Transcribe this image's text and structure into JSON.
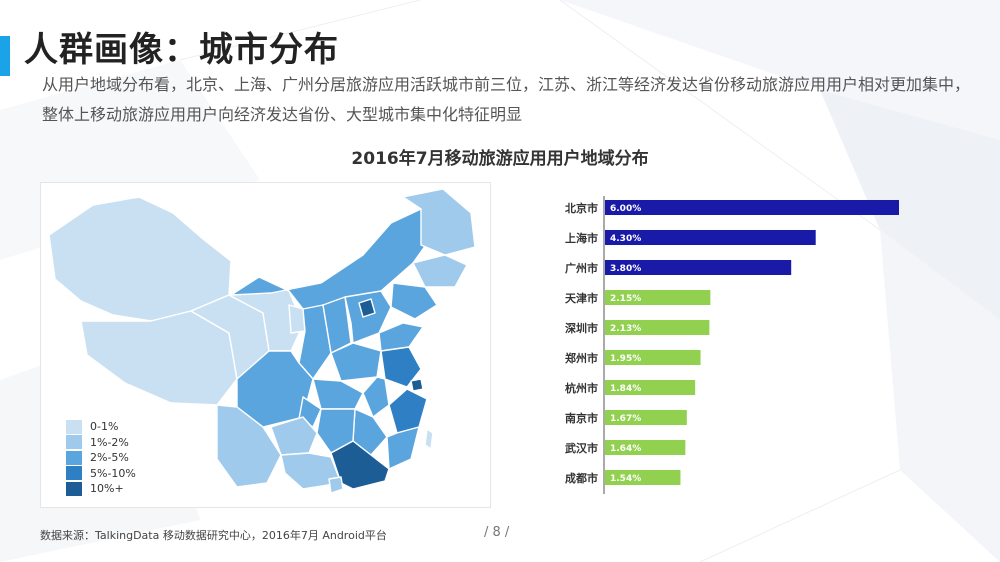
{
  "header": {
    "title": "人群画像：城市分布",
    "subtitle": "从用户地域分布看，北京、上海、广州分居旅游应用活跃城市前三位，江苏、浙江等经济发达省份移动旅游应用用户相对更加集中，整体上移动旅游应用用户向经济发达省份、大型城市集中化特征明显"
  },
  "colors": {
    "accent": "#1aa3e8",
    "bar_top": "#1a1aa8",
    "bar_rest": "#92d050",
    "map_levels": [
      "#c9e0f3",
      "#9fcaec",
      "#5aa5de",
      "#2f7fc4",
      "#1c5d95"
    ]
  },
  "legend": {
    "items": [
      {
        "label": "0-1%",
        "color": "#c9e0f3"
      },
      {
        "label": "1%-2%",
        "color": "#9fcaec"
      },
      {
        "label": "2%-5%",
        "color": "#5aa5de"
      },
      {
        "label": "5%-10%",
        "color": "#2f7fc4"
      },
      {
        "label": "10%+",
        "color": "#1c5d95"
      }
    ]
  },
  "chart_data": {
    "type": "bar",
    "orientation": "horizontal",
    "title": "2016年7月移动旅游应用用户地域分布",
    "categories": [
      "北京市",
      "上海市",
      "广州市",
      "天津市",
      "深圳市",
      "郑州市",
      "杭州市",
      "南京市",
      "武汉市",
      "成都市"
    ],
    "values": [
      6.0,
      4.3,
      3.8,
      2.15,
      2.13,
      1.95,
      1.84,
      1.67,
      1.64,
      1.54
    ],
    "labels": [
      "6.00%",
      "4.30%",
      "3.80%",
      "2.15%",
      "2.13%",
      "1.95%",
      "1.84%",
      "1.67%",
      "1.64%",
      "1.54%"
    ],
    "xlim": [
      0,
      6.0
    ],
    "grid": false,
    "legend": false
  },
  "footer": {
    "source": "数据来源：TalkingData 移动数据研究中心，2016年7月 Android平台",
    "page": "/ 8 /"
  }
}
